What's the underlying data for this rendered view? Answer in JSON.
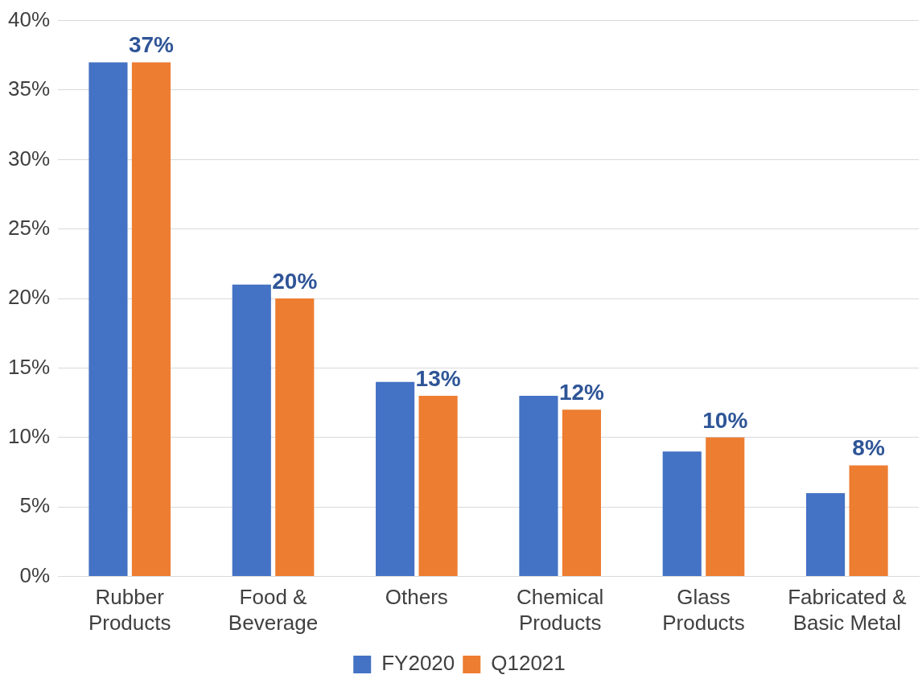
{
  "chart_data": {
    "type": "bar",
    "categories": [
      "Rubber Products",
      "Food & Beverage",
      "Others",
      "Chemical Products",
      "Glass Products",
      "Fabricated & Basic Metal"
    ],
    "series": [
      {
        "name": "FY2020",
        "color": "#4472c4",
        "values": [
          37,
          21,
          14,
          13,
          9,
          6
        ]
      },
      {
        "name": "Q12021",
        "color": "#ed7d31",
        "values": [
          37,
          20,
          13,
          12,
          10,
          8
        ],
        "value_labels": [
          "37%",
          "20%",
          "13%",
          "12%",
          "10%",
          "8%"
        ]
      }
    ],
    "ylim": [
      0,
      40
    ],
    "yticks": [
      {
        "value": 0,
        "label": "0%"
      },
      {
        "value": 5,
        "label": "5%"
      },
      {
        "value": 10,
        "label": "10%"
      },
      {
        "value": 15,
        "label": "15%"
      },
      {
        "value": 20,
        "label": "20%"
      },
      {
        "value": 25,
        "label": "25%"
      },
      {
        "value": 30,
        "label": "30%"
      },
      {
        "value": 35,
        "label": "35%"
      },
      {
        "value": 40,
        "label": "40%"
      }
    ],
    "grid": "y",
    "legend": "bottom"
  }
}
